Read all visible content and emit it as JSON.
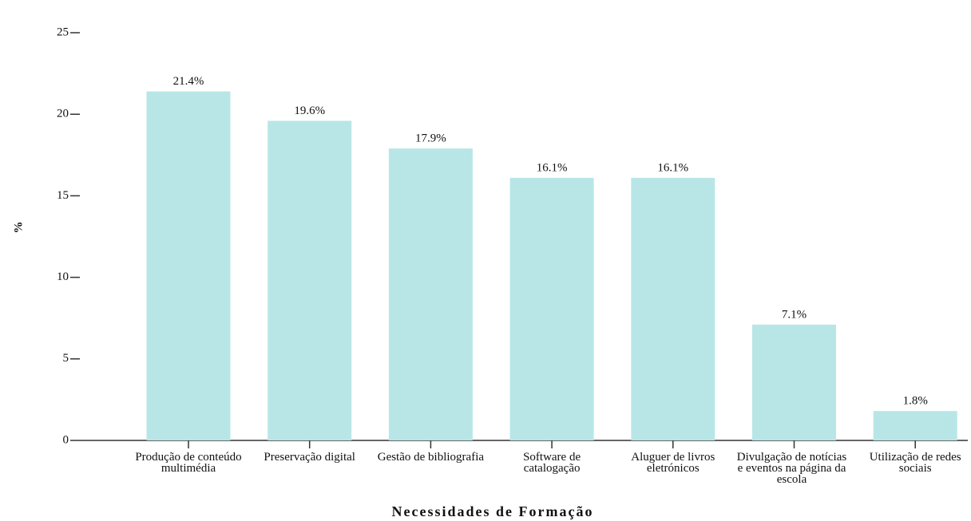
{
  "chart_data": {
    "type": "bar",
    "x_label": "Necessidades de Formação",
    "y_label": "%",
    "categories": [
      "Produção de conteúdo multimédia",
      "Preservação digital",
      "Gestão de bibliografia",
      "Software de catalogação",
      "Aluguer de livros eletrónicos",
      "Divulgação de notícias e eventos na página da escola",
      "Utilização de redes sociais"
    ],
    "values": [
      21.4,
      19.6,
      17.9,
      16.1,
      16.1,
      7.1,
      1.8
    ],
    "value_labels": [
      "21.4%",
      "19.6%",
      "17.9%",
      "16.1%",
      "16.1%",
      "7.1%",
      "1.8%"
    ],
    "color": "#b8e6e6",
    "ylim": [
      0,
      25
    ],
    "yticks": [
      0,
      5,
      10,
      15,
      20,
      25
    ],
    "grid": false
  }
}
